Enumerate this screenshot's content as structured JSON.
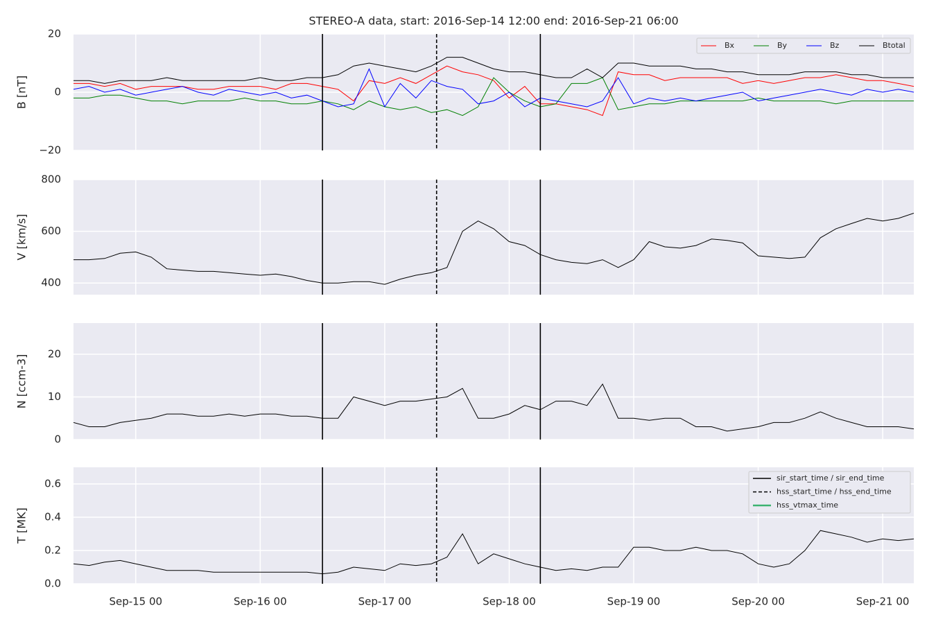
{
  "chart_data": [
    {
      "type": "line",
      "title": "STEREO-A data, start: 2016-Sep-14 12:00  end: 2016-Sep-21 06:00",
      "ylabel": "B [nT]",
      "x": [
        "2016-09-14T12:00",
        "2016-09-14T15:00",
        "2016-09-14T18:00",
        "2016-09-14T21:00",
        "2016-09-15T00:00",
        "2016-09-15T03:00",
        "2016-09-15T06:00",
        "2016-09-15T09:00",
        "2016-09-15T12:00",
        "2016-09-15T15:00",
        "2016-09-15T18:00",
        "2016-09-15T21:00",
        "2016-09-16T00:00",
        "2016-09-16T03:00",
        "2016-09-16T06:00",
        "2016-09-16T09:00",
        "2016-09-16T12:00",
        "2016-09-16T15:00",
        "2016-09-16T18:00",
        "2016-09-16T21:00",
        "2016-09-17T00:00",
        "2016-09-17T03:00",
        "2016-09-17T06:00",
        "2016-09-17T09:00",
        "2016-09-17T12:00",
        "2016-09-17T15:00",
        "2016-09-17T18:00",
        "2016-09-17T21:00",
        "2016-09-18T00:00",
        "2016-09-18T03:00",
        "2016-09-18T06:00",
        "2016-09-18T09:00",
        "2016-09-18T12:00",
        "2016-09-18T15:00",
        "2016-09-18T18:00",
        "2016-09-18T21:00",
        "2016-09-19T00:00",
        "2016-09-19T03:00",
        "2016-09-19T06:00",
        "2016-09-19T09:00",
        "2016-09-19T12:00",
        "2016-09-19T15:00",
        "2016-09-19T18:00",
        "2016-09-19T21:00",
        "2016-09-20T00:00",
        "2016-09-20T03:00",
        "2016-09-20T06:00",
        "2016-09-20T09:00",
        "2016-09-20T12:00",
        "2016-09-20T15:00",
        "2016-09-20T18:00",
        "2016-09-20T21:00",
        "2016-09-21T00:00",
        "2016-09-21T03:00",
        "2016-09-21T06:00"
      ],
      "xlim": [
        "2016-09-14T12:00",
        "2016-09-21T06:00"
      ],
      "ylim": [
        -20,
        20
      ],
      "yticks": [
        {
          "value": -20,
          "label": "−20"
        },
        0,
        20
      ],
      "grid": true,
      "legend": "upper right",
      "series": [
        {
          "name": "Bx",
          "color": "#ff0000",
          "values": [
            3,
            3,
            2,
            3,
            1,
            2,
            2,
            2,
            1,
            1,
            2,
            2,
            2,
            1,
            3,
            3,
            2,
            1,
            -3,
            4,
            3,
            5,
            3,
            6,
            9,
            7,
            6,
            4,
            -2,
            2,
            -4,
            -4,
            -5,
            -6,
            -8,
            7,
            6,
            6,
            4,
            5,
            5,
            5,
            5,
            3,
            4,
            3,
            4,
            5,
            5,
            6,
            5,
            4,
            4,
            3,
            2
          ]
        },
        {
          "name": "By",
          "color": "#008000",
          "values": [
            -2,
            -2,
            -1,
            -1,
            -2,
            -3,
            -3,
            -4,
            -3,
            -3,
            -3,
            -2,
            -3,
            -3,
            -4,
            -4,
            -3,
            -4,
            -6,
            -3,
            -5,
            -6,
            -5,
            -7,
            -6,
            -8,
            -5,
            5,
            0,
            -3,
            -5,
            -4,
            3,
            3,
            5,
            -6,
            -5,
            -4,
            -4,
            -3,
            -3,
            -3,
            -3,
            -3,
            -2,
            -3,
            -3,
            -3,
            -3,
            -4,
            -3,
            -3,
            -3,
            -3,
            -3
          ]
        },
        {
          "name": "Bz",
          "color": "#0000ff",
          "values": [
            1,
            2,
            0,
            1,
            -1,
            0,
            1,
            2,
            0,
            -1,
            1,
            0,
            -1,
            0,
            -2,
            -1,
            -3,
            -5,
            -4,
            8,
            -5,
            3,
            -2,
            4,
            2,
            1,
            -4,
            -3,
            0,
            -5,
            -2,
            -3,
            -4,
            -5,
            -3,
            5,
            -4,
            -2,
            -3,
            -2,
            -3,
            -2,
            -1,
            0,
            -3,
            -2,
            -1,
            0,
            1,
            0,
            -1,
            1,
            0,
            1,
            0
          ]
        },
        {
          "name": "Btotal",
          "color": "#000000",
          "values": [
            4,
            4,
            3,
            4,
            4,
            4,
            5,
            4,
            4,
            4,
            4,
            4,
            5,
            4,
            4,
            5,
            5,
            6,
            9,
            10,
            9,
            8,
            7,
            9,
            12,
            12,
            10,
            8,
            7,
            7,
            6,
            5,
            5,
            8,
            5,
            10,
            10,
            9,
            9,
            9,
            8,
            8,
            7,
            7,
            6,
            6,
            6,
            7,
            7,
            7,
            6,
            6,
            5,
            5,
            5
          ]
        }
      ]
    },
    {
      "type": "line",
      "ylabel": "V [km/s]",
      "x": [
        "2016-09-14T12:00",
        "2016-09-14T15:00",
        "2016-09-14T18:00",
        "2016-09-14T21:00",
        "2016-09-15T00:00",
        "2016-09-15T03:00",
        "2016-09-15T06:00",
        "2016-09-15T09:00",
        "2016-09-15T12:00",
        "2016-09-15T15:00",
        "2016-09-15T18:00",
        "2016-09-15T21:00",
        "2016-09-16T00:00",
        "2016-09-16T03:00",
        "2016-09-16T06:00",
        "2016-09-16T09:00",
        "2016-09-16T12:00",
        "2016-09-16T15:00",
        "2016-09-16T18:00",
        "2016-09-16T21:00",
        "2016-09-17T00:00",
        "2016-09-17T03:00",
        "2016-09-17T06:00",
        "2016-09-17T09:00",
        "2016-09-17T12:00",
        "2016-09-17T15:00",
        "2016-09-17T18:00",
        "2016-09-17T21:00",
        "2016-09-18T00:00",
        "2016-09-18T03:00",
        "2016-09-18T06:00",
        "2016-09-18T09:00",
        "2016-09-18T12:00",
        "2016-09-18T15:00",
        "2016-09-18T18:00",
        "2016-09-18T21:00",
        "2016-09-19T00:00",
        "2016-09-19T03:00",
        "2016-09-19T06:00",
        "2016-09-19T09:00",
        "2016-09-19T12:00",
        "2016-09-19T15:00",
        "2016-09-19T18:00",
        "2016-09-19T21:00",
        "2016-09-20T00:00",
        "2016-09-20T03:00",
        "2016-09-20T06:00",
        "2016-09-20T09:00",
        "2016-09-20T12:00",
        "2016-09-20T15:00",
        "2016-09-20T18:00",
        "2016-09-20T21:00",
        "2016-09-21T00:00",
        "2016-09-21T03:00",
        "2016-09-21T06:00"
      ],
      "xlim": [
        "2016-09-14T12:00",
        "2016-09-21T06:00"
      ],
      "ylim": [
        355,
        800
      ],
      "yticks": [
        400,
        600,
        800
      ],
      "grid": true,
      "series": [
        {
          "color": "#000000",
          "values": [
            490,
            490,
            495,
            515,
            520,
            500,
            455,
            450,
            445,
            445,
            440,
            435,
            430,
            435,
            425,
            410,
            400,
            400,
            405,
            405,
            395,
            415,
            430,
            440,
            460,
            600,
            640,
            610,
            560,
            545,
            510,
            490,
            480,
            475,
            490,
            460,
            490,
            560,
            540,
            535,
            545,
            570,
            565,
            555,
            505,
            500,
            495,
            500,
            575,
            610,
            630,
            650,
            640,
            650,
            670
          ]
        }
      ]
    },
    {
      "type": "line",
      "ylabel": "N [ccm-3]",
      "x": [
        "2016-09-14T12:00",
        "2016-09-14T15:00",
        "2016-09-14T18:00",
        "2016-09-14T21:00",
        "2016-09-15T00:00",
        "2016-09-15T03:00",
        "2016-09-15T06:00",
        "2016-09-15T09:00",
        "2016-09-15T12:00",
        "2016-09-15T15:00",
        "2016-09-15T18:00",
        "2016-09-15T21:00",
        "2016-09-16T00:00",
        "2016-09-16T03:00",
        "2016-09-16T06:00",
        "2016-09-16T09:00",
        "2016-09-16T12:00",
        "2016-09-16T15:00",
        "2016-09-16T18:00",
        "2016-09-16T21:00",
        "2016-09-17T00:00",
        "2016-09-17T03:00",
        "2016-09-17T06:00",
        "2016-09-17T09:00",
        "2016-09-17T12:00",
        "2016-09-17T15:00",
        "2016-09-17T18:00",
        "2016-09-17T21:00",
        "2016-09-18T00:00",
        "2016-09-18T03:00",
        "2016-09-18T06:00",
        "2016-09-18T09:00",
        "2016-09-18T12:00",
        "2016-09-18T15:00",
        "2016-09-18T18:00",
        "2016-09-18T21:00",
        "2016-09-19T00:00",
        "2016-09-19T03:00",
        "2016-09-19T06:00",
        "2016-09-19T09:00",
        "2016-09-19T12:00",
        "2016-09-19T15:00",
        "2016-09-19T18:00",
        "2016-09-19T21:00",
        "2016-09-20T00:00",
        "2016-09-20T03:00",
        "2016-09-20T06:00",
        "2016-09-20T09:00",
        "2016-09-20T12:00",
        "2016-09-20T15:00",
        "2016-09-20T18:00",
        "2016-09-20T21:00",
        "2016-09-21T00:00",
        "2016-09-21T03:00",
        "2016-09-21T06:00"
      ],
      "xlim": [
        "2016-09-14T12:00",
        "2016-09-21T06:00"
      ],
      "ylim": [
        0,
        27.3
      ],
      "yticks": [
        0,
        10,
        20
      ],
      "grid": true,
      "series": [
        {
          "color": "#000000",
          "values": [
            4,
            3,
            3,
            4,
            4.5,
            5,
            6,
            6,
            5.5,
            5.5,
            6,
            5.5,
            6,
            6,
            5.5,
            5.5,
            5,
            5,
            10,
            9,
            8,
            9,
            9,
            9.5,
            10,
            12,
            5,
            5,
            6,
            8,
            7,
            9,
            9,
            8,
            13,
            5,
            5,
            4.5,
            5,
            5,
            3,
            3,
            2,
            2.5,
            3,
            4,
            4,
            5,
            6.5,
            5,
            4,
            3,
            3,
            3,
            2.5
          ]
        }
      ]
    },
    {
      "type": "line",
      "ylabel": "T [MK]",
      "x": [
        "2016-09-14T12:00",
        "2016-09-14T15:00",
        "2016-09-14T18:00",
        "2016-09-14T21:00",
        "2016-09-15T00:00",
        "2016-09-15T03:00",
        "2016-09-15T06:00",
        "2016-09-15T09:00",
        "2016-09-15T12:00",
        "2016-09-15T15:00",
        "2016-09-15T18:00",
        "2016-09-15T21:00",
        "2016-09-16T00:00",
        "2016-09-16T03:00",
        "2016-09-16T06:00",
        "2016-09-16T09:00",
        "2016-09-16T12:00",
        "2016-09-16T15:00",
        "2016-09-16T18:00",
        "2016-09-16T21:00",
        "2016-09-17T00:00",
        "2016-09-17T03:00",
        "2016-09-17T06:00",
        "2016-09-17T09:00",
        "2016-09-17T12:00",
        "2016-09-17T15:00",
        "2016-09-17T18:00",
        "2016-09-17T21:00",
        "2016-09-18T00:00",
        "2016-09-18T03:00",
        "2016-09-18T06:00",
        "2016-09-18T09:00",
        "2016-09-18T12:00",
        "2016-09-18T15:00",
        "2016-09-18T18:00",
        "2016-09-18T21:00",
        "2016-09-19T00:00",
        "2016-09-19T03:00",
        "2016-09-19T06:00",
        "2016-09-19T09:00",
        "2016-09-19T12:00",
        "2016-09-19T15:00",
        "2016-09-19T18:00",
        "2016-09-19T21:00",
        "2016-09-20T00:00",
        "2016-09-20T03:00",
        "2016-09-20T06:00",
        "2016-09-20T09:00",
        "2016-09-20T12:00",
        "2016-09-20T15:00",
        "2016-09-20T18:00",
        "2016-09-20T21:00",
        "2016-09-21T00:00",
        "2016-09-21T03:00",
        "2016-09-21T06:00"
      ],
      "xlim": [
        "2016-09-14T12:00",
        "2016-09-21T06:00"
      ],
      "xticks": [
        {
          "value": "2016-09-15T00:00",
          "label": "Sep-15 00"
        },
        {
          "value": "2016-09-16T00:00",
          "label": "Sep-16 00"
        },
        {
          "value": "2016-09-17T00:00",
          "label": "Sep-17 00"
        },
        {
          "value": "2016-09-18T00:00",
          "label": "Sep-18 00"
        },
        {
          "value": "2016-09-19T00:00",
          "label": "Sep-19 00"
        },
        {
          "value": "2016-09-20T00:00",
          "label": "Sep-20 00"
        },
        {
          "value": "2016-09-21T00:00",
          "label": "Sep-21 00"
        }
      ],
      "ylim": [
        0,
        0.7
      ],
      "yticks": [
        {
          "value": 0,
          "label": "0.0"
        },
        0.2,
        0.4,
        0.6
      ],
      "grid": true,
      "legend": "upper right",
      "series": [
        {
          "color": "#000000",
          "values": [
            0.12,
            0.11,
            0.13,
            0.14,
            0.12,
            0.1,
            0.08,
            0.08,
            0.08,
            0.07,
            0.07,
            0.07,
            0.07,
            0.07,
            0.07,
            0.07,
            0.06,
            0.07,
            0.1,
            0.09,
            0.08,
            0.12,
            0.11,
            0.12,
            0.16,
            0.3,
            0.12,
            0.18,
            0.15,
            0.12,
            0.1,
            0.08,
            0.09,
            0.08,
            0.1,
            0.1,
            0.22,
            0.22,
            0.2,
            0.2,
            0.22,
            0.2,
            0.2,
            0.18,
            0.12,
            0.1,
            0.12,
            0.2,
            0.32,
            0.3,
            0.28,
            0.25,
            0.27,
            0.26,
            0.27
          ]
        }
      ],
      "markers": [
        {
          "name": "sir_start_time / sir_end_time",
          "style": "solid",
          "color": "#000000",
          "x": [
            "2016-09-16T12:00",
            "2016-09-18T06:00"
          ]
        },
        {
          "name": "hss_start_time / hss_end_time",
          "style": "dashed",
          "color": "#000000",
          "x": [
            "2016-09-17T10:00"
          ]
        },
        {
          "name": "hss_vtmax_time",
          "style": "solid",
          "color": "#3cb371",
          "x": []
        }
      ]
    }
  ]
}
